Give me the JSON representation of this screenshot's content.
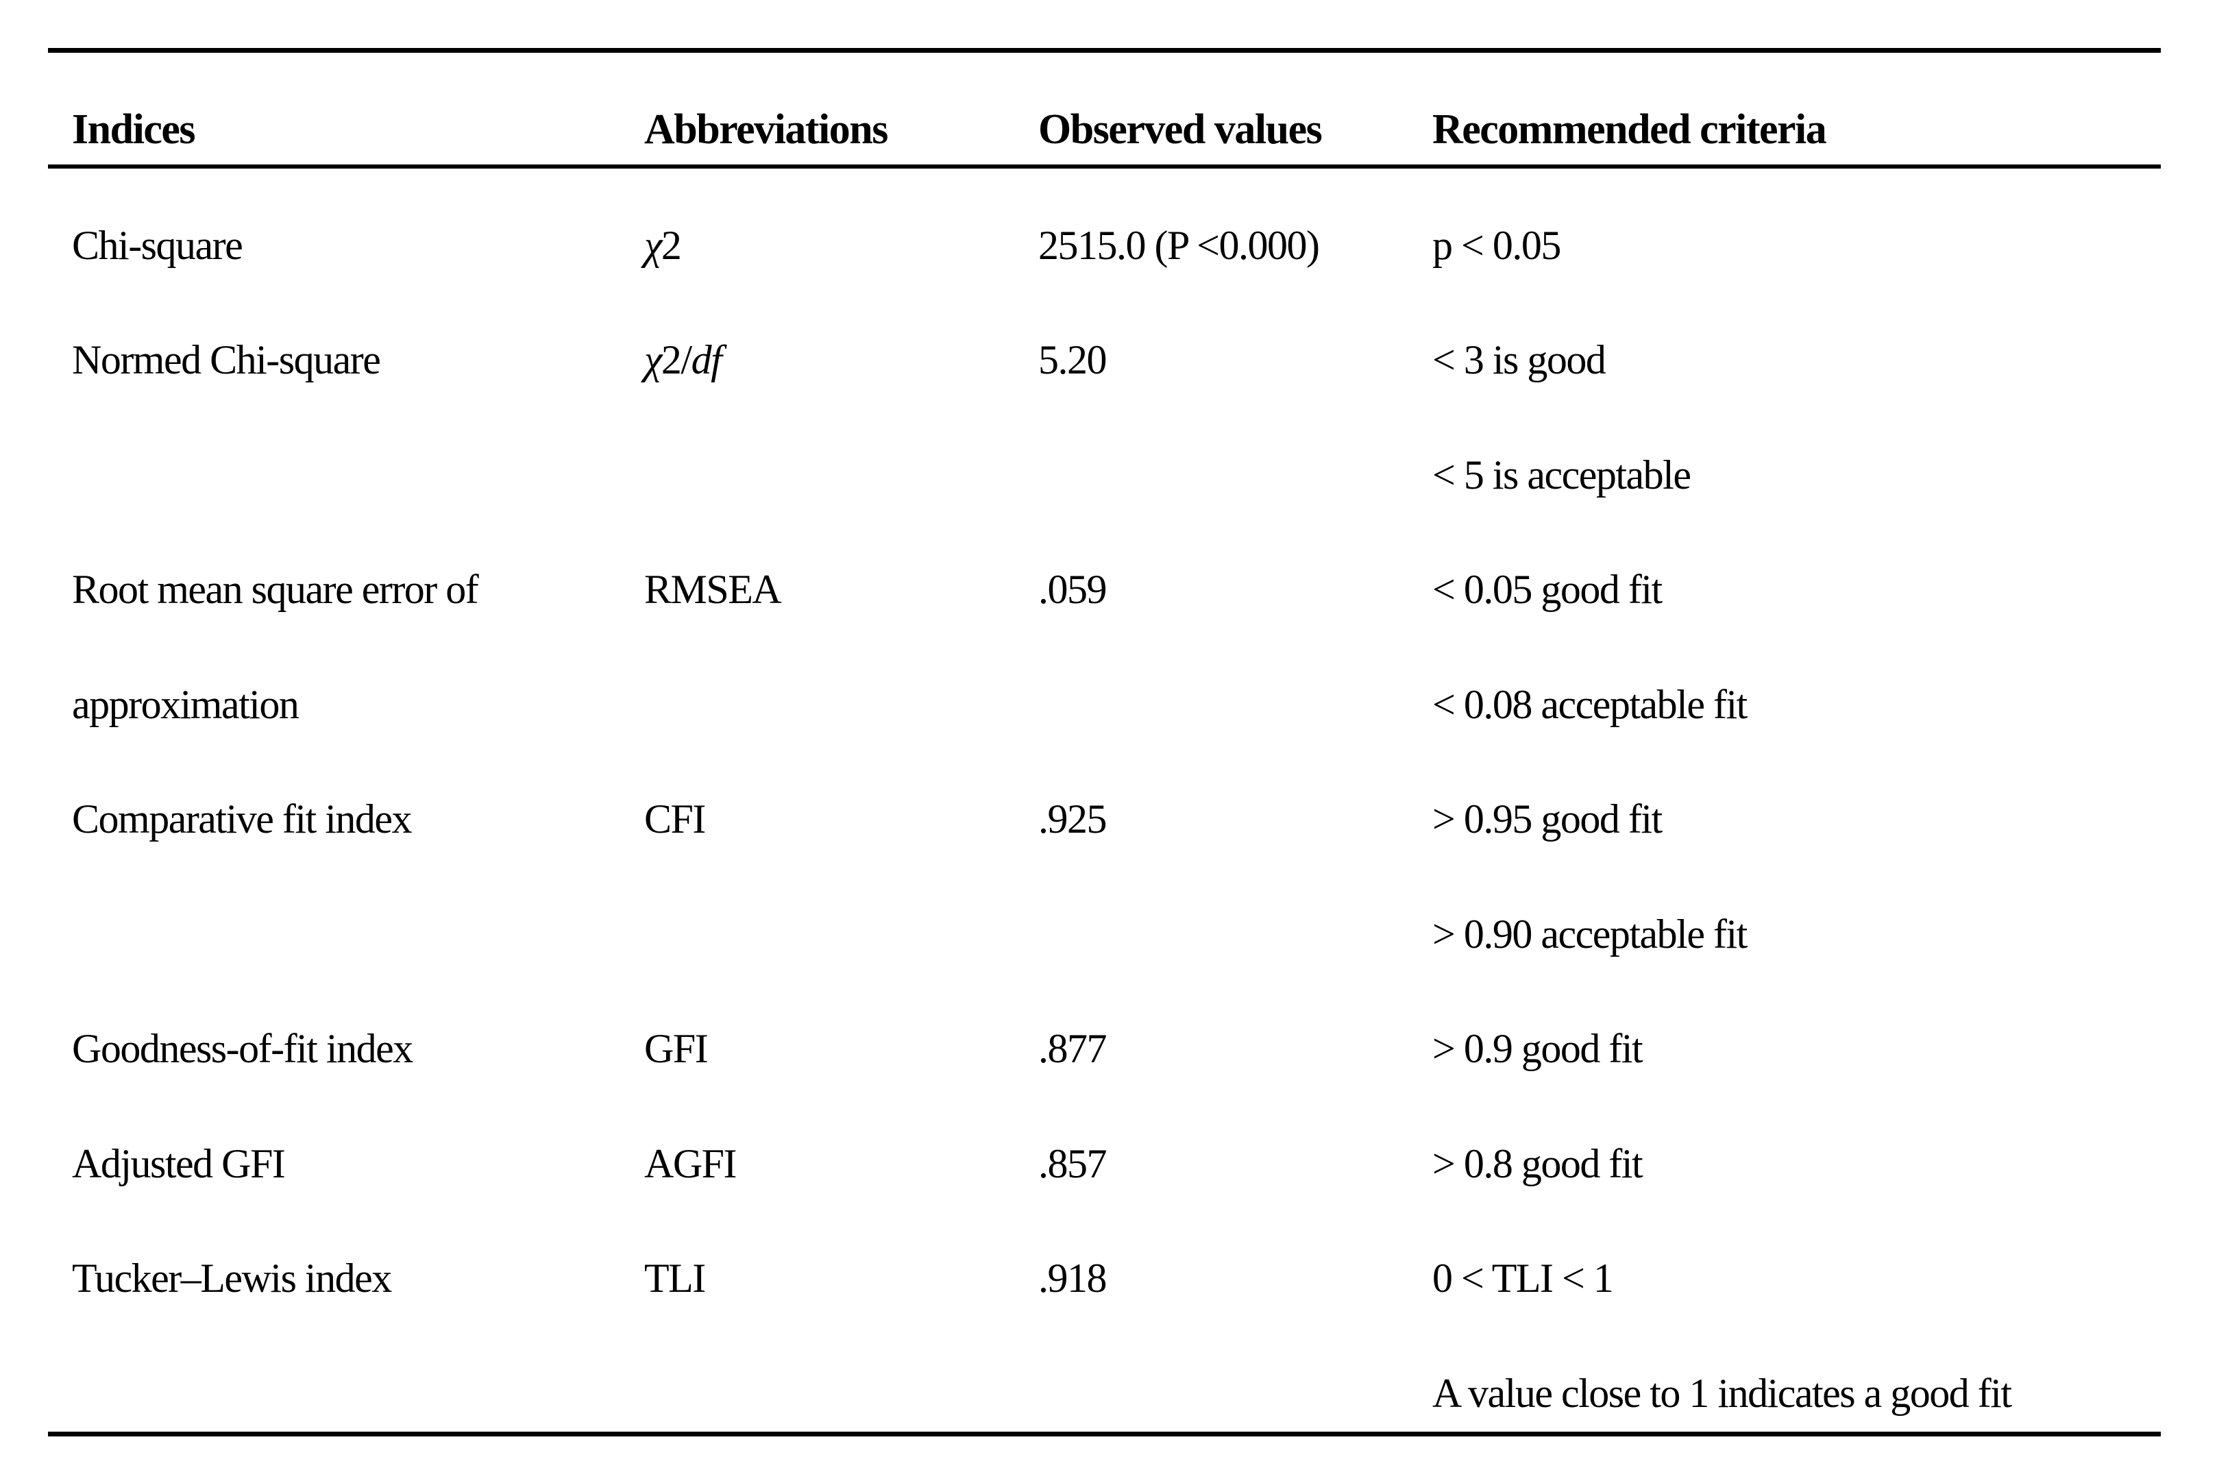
{
  "table": {
    "columns": [
      "Indices",
      "Abbreviations",
      "Observed values",
      "Recommended criteria"
    ],
    "rows": [
      {
        "index": "Chi-square",
        "abbr_i1": "χ",
        "abbr": "2",
        "abbr_i2": "",
        "observed": "2515.0 (P <0.000)",
        "criteria": "p < 0.05"
      },
      {
        "index": "Normed Chi-square",
        "abbr_i1": "χ",
        "abbr": "2/",
        "abbr_i2": "df",
        "observed": "5.20",
        "criteria": "< 3 is good"
      },
      {
        "index": "",
        "abbr_i1": "",
        "abbr": "",
        "abbr_i2": "",
        "observed": "",
        "criteria": "< 5 is acceptable"
      },
      {
        "index": "Root mean square error of",
        "abbr_i1": "",
        "abbr": "RMSEA",
        "abbr_i2": "",
        "observed": ".059",
        "criteria": "< 0.05 good fit"
      },
      {
        "index": "approximation",
        "abbr_i1": "",
        "abbr": "",
        "abbr_i2": "",
        "observed": "",
        "criteria": "< 0.08 acceptable fit"
      },
      {
        "index": "Comparative fit index",
        "abbr_i1": "",
        "abbr": "CFI",
        "abbr_i2": "",
        "observed": ".925",
        "criteria": "> 0.95 good fit"
      },
      {
        "index": "",
        "abbr_i1": "",
        "abbr": "",
        "abbr_i2": "",
        "observed": "",
        "criteria": "> 0.90 acceptable fit"
      },
      {
        "index": "Goodness-of-fit index",
        "abbr_i1": "",
        "abbr": "GFI",
        "abbr_i2": "",
        "observed": ".877",
        "criteria": "> 0.9 good fit"
      },
      {
        "index": "Adjusted GFI",
        "abbr_i1": "",
        "abbr": "AGFI",
        "abbr_i2": "",
        "observed": ".857",
        "criteria": "> 0.8 good fit"
      },
      {
        "index": "Tucker–Lewis index",
        "abbr_i1": "",
        "abbr": "TLI",
        "abbr_i2": "",
        "observed": ".918",
        "criteria": "0 < TLI < 1"
      },
      {
        "index": "",
        "abbr_i1": "",
        "abbr": "",
        "abbr_i2": "",
        "observed": "",
        "criteria": "A value close to 1 indicates a good fit"
      }
    ]
  }
}
